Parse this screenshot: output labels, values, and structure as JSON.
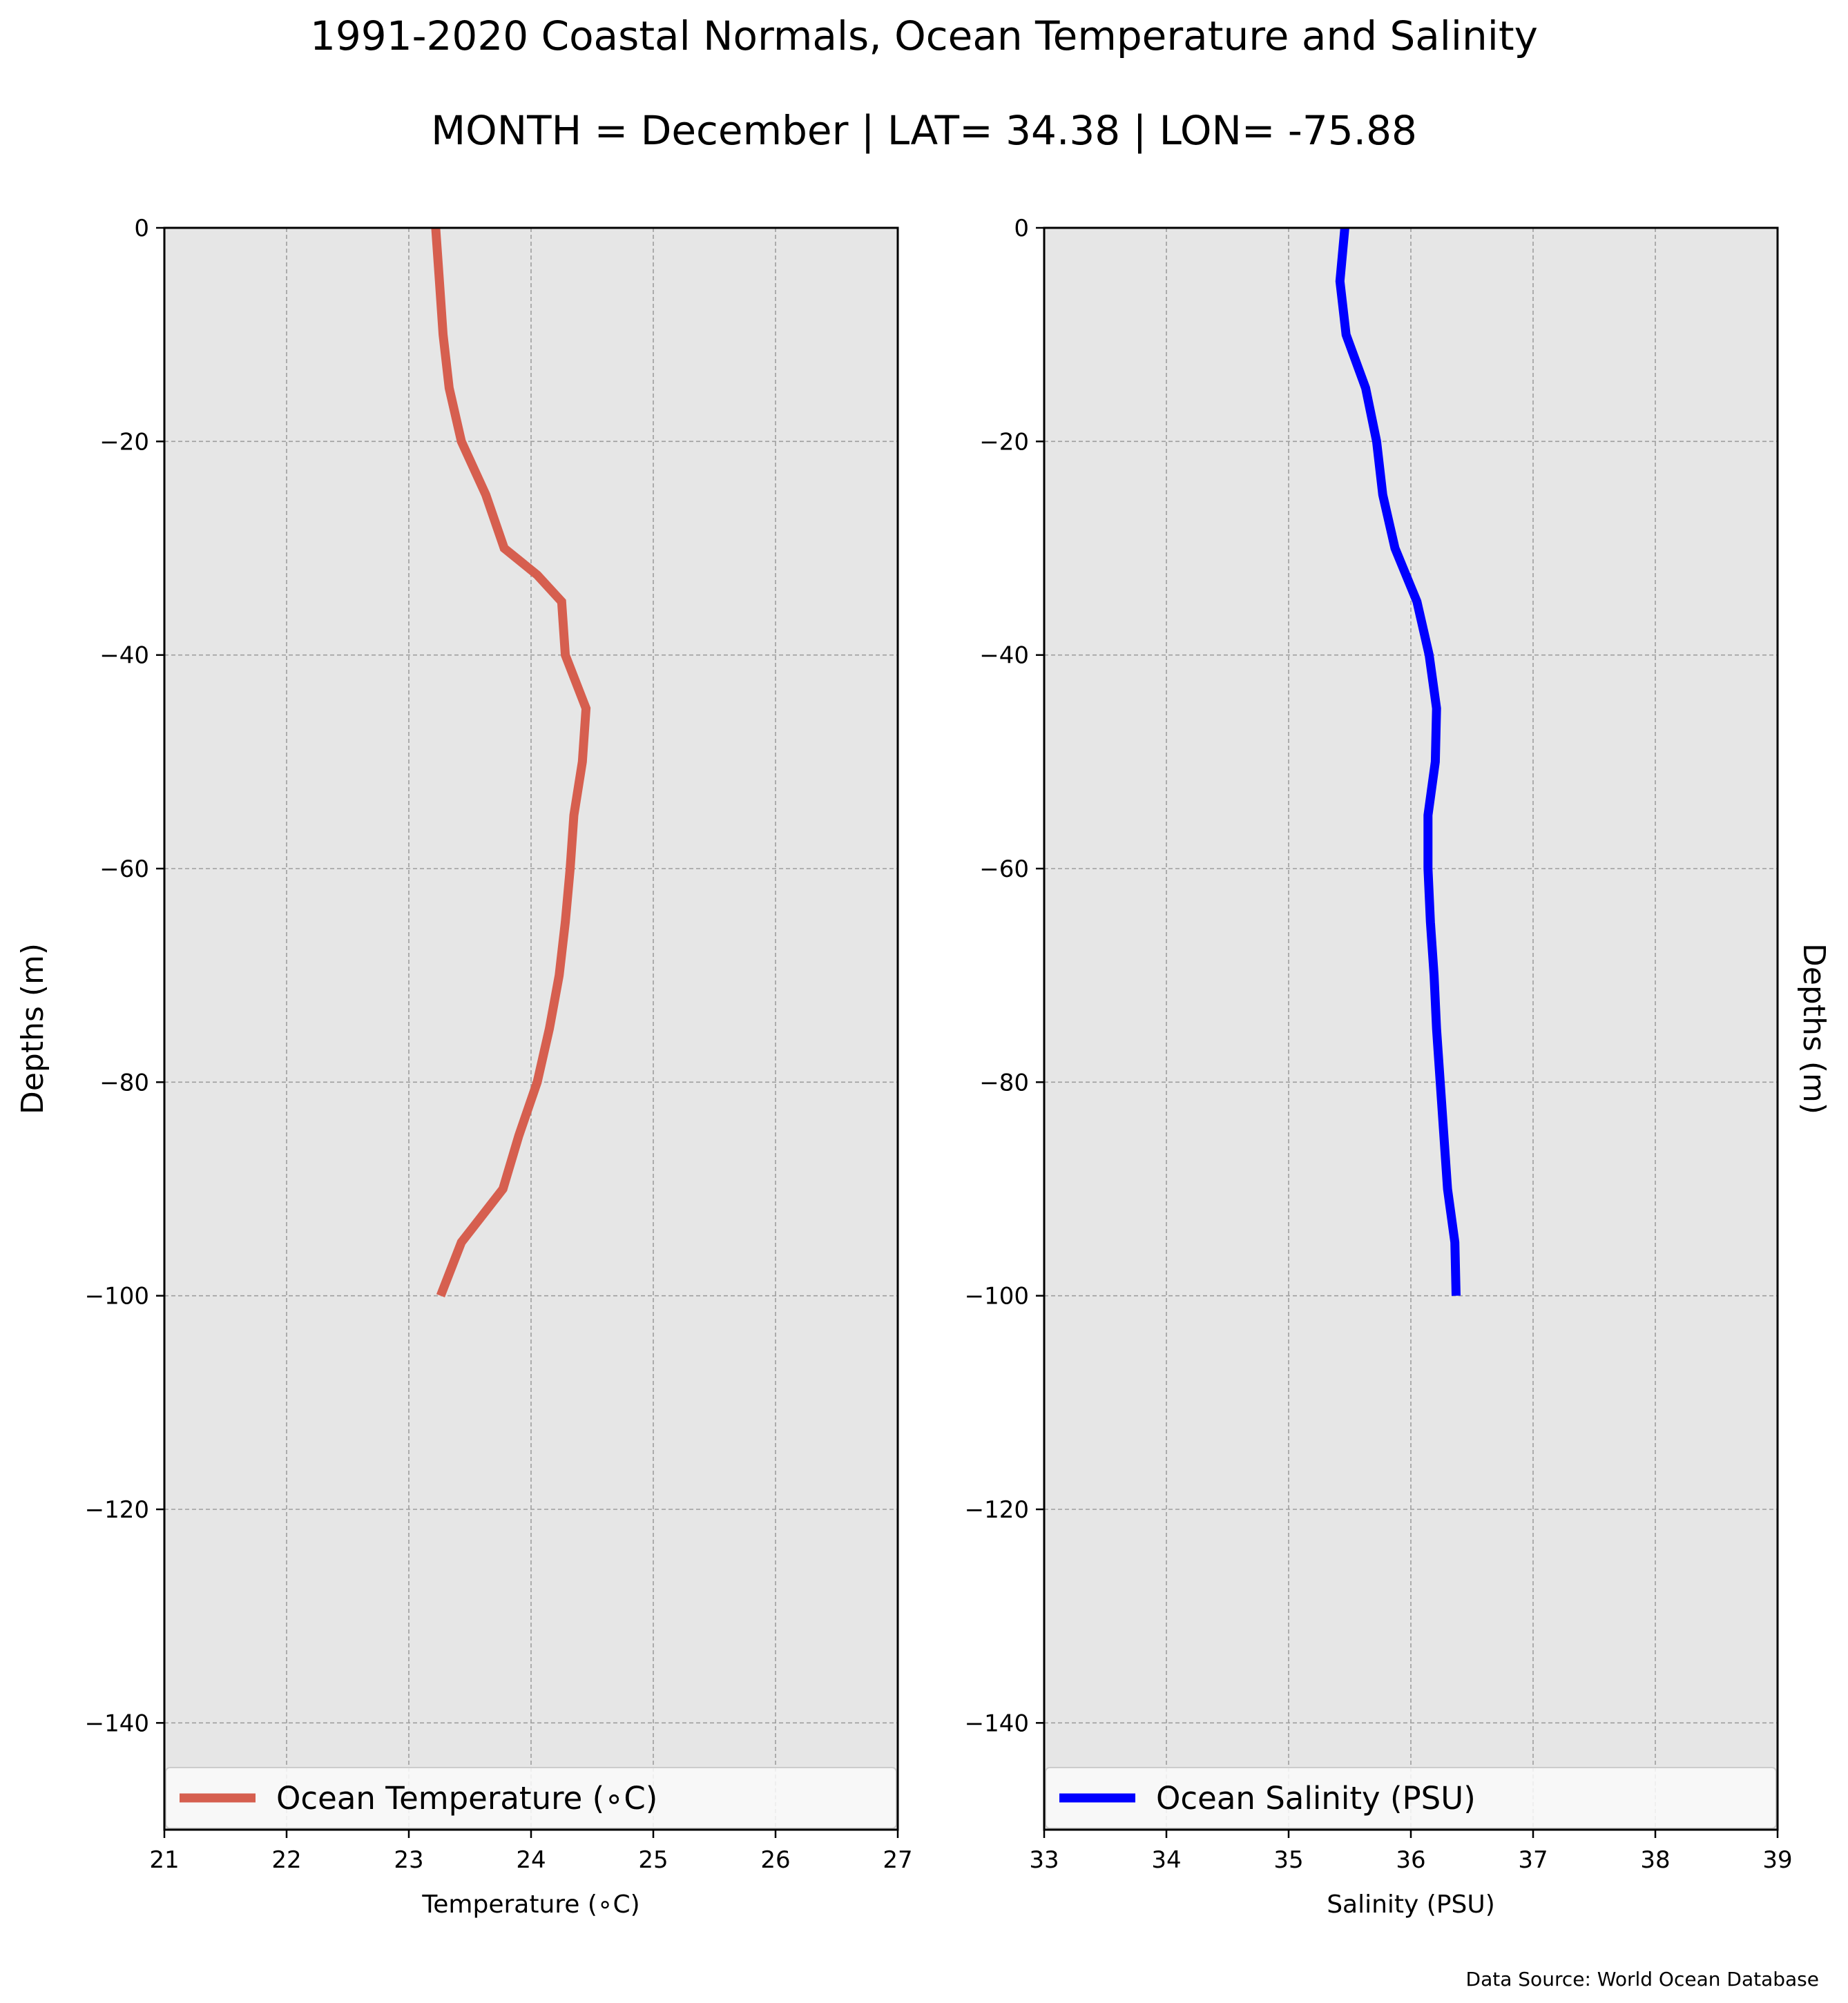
{
  "title": "1991-2020 Coastal Normals, Ocean Temperature and Salinity",
  "subtitle": "MONTH = December | LAT= 34.38 | LON= -75.88",
  "source": "Data Source: World Ocean Database",
  "colors": {
    "background": "#e6e6e6",
    "grid": "#9e9e9e",
    "temperature": "#d65f4f",
    "salinity": "#0000ff"
  },
  "chart_data": [
    {
      "type": "line",
      "xlabel": "Temperature (∘C)",
      "ylabel": "Depths (m)",
      "xlim": [
        21,
        27
      ],
      "ylim": [
        -150,
        0
      ],
      "xticks": [
        "21",
        "22",
        "23",
        "24",
        "25",
        "26",
        "27"
      ],
      "yticks": [
        "0",
        "−20",
        "−40",
        "−60",
        "−80",
        "−100",
        "−120",
        "−140"
      ],
      "grid": true,
      "legend_position": "bottom",
      "series": [
        {
          "name": "Ocean Temperature (∘C)",
          "x": [
            23.22,
            23.25,
            23.28,
            23.33,
            23.43,
            23.63,
            23.78,
            24.05,
            24.25,
            24.28,
            24.45,
            24.42,
            24.35,
            24.32,
            24.28,
            24.23,
            24.15,
            24.05,
            23.9,
            23.77,
            23.43,
            23.26
          ],
          "y": [
            0,
            -5,
            -10,
            -15,
            -20,
            -25,
            -30,
            -32.5,
            -35,
            -40,
            -45,
            -50,
            -55,
            -60,
            -65,
            -70,
            -75,
            -80,
            -85,
            -90,
            -95,
            -100
          ]
        }
      ]
    },
    {
      "type": "line",
      "xlabel": "Salinity (PSU)",
      "ylabel": "Depths (m)",
      "xlim": [
        33,
        39
      ],
      "ylim": [
        -150,
        0
      ],
      "xticks": [
        "33",
        "34",
        "35",
        "36",
        "37",
        "38",
        "39"
      ],
      "yticks": [
        "0",
        "−20",
        "−40",
        "−60",
        "−80",
        "−100",
        "−120",
        "−140"
      ],
      "grid": true,
      "legend_position": "bottom",
      "series": [
        {
          "name": "Ocean Salinity (PSU)",
          "x": [
            35.46,
            35.42,
            35.47,
            35.63,
            35.72,
            35.77,
            35.87,
            36.05,
            36.15,
            36.21,
            36.2,
            36.14,
            36.14,
            36.16,
            36.19,
            36.21,
            36.24,
            36.27,
            36.3,
            36.36,
            36.37
          ],
          "y": [
            0,
            -5,
            -10,
            -15,
            -20,
            -25,
            -30,
            -35,
            -40,
            -45,
            -50,
            -55,
            -60,
            -65,
            -70,
            -75,
            -80,
            -85,
            -90,
            -95,
            -100
          ]
        }
      ]
    }
  ]
}
